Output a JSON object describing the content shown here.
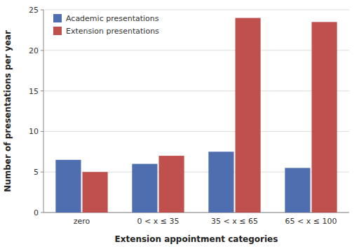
{
  "chart_data": {
    "type": "bar",
    "categories": [
      "zero",
      "0 < x ≤ 35",
      "35 < x ≤ 65",
      "65 < x ≤ 100"
    ],
    "series": [
      {
        "name": "Academic presentations",
        "color": "#4F6EAF",
        "values": [
          6.5,
          6.0,
          7.5,
          5.5
        ]
      },
      {
        "name": "Extension presentations",
        "color": "#C0504D",
        "values": [
          5.0,
          7.0,
          24.0,
          23.5
        ]
      }
    ],
    "xlabel": "Extension appointment categories",
    "ylabel": "Number of presentations per year",
    "ylim": [
      0,
      25
    ],
    "yticks": [
      0,
      5,
      10,
      15,
      20,
      25
    ],
    "grid": true,
    "legend": "upper left"
  }
}
